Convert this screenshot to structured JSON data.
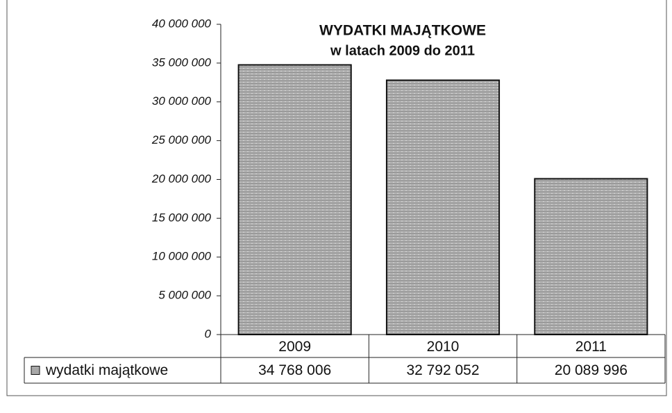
{
  "chart_data": {
    "type": "bar",
    "title": "WYDATKI MAJĄTKOWE",
    "subtitle": "w latach 2009 do 2011",
    "categories": [
      "2009",
      "2010",
      "2011"
    ],
    "series": [
      {
        "name": "wydatki majątkowe",
        "color": "#a8a8a8",
        "values": [
          34768006,
          32792052,
          20089996
        ],
        "value_labels": [
          "34 768 006",
          "32 792 052",
          "20 089 996"
        ]
      }
    ],
    "ylim": [
      0,
      40000000
    ],
    "yticks": [
      0,
      {
        "value": 5000000,
        "label": "5 000 000"
      },
      {
        "value": 10000000,
        "label": "10 000 000"
      },
      {
        "value": 15000000,
        "label": "15 000 000"
      },
      {
        "value": 20000000,
        "label": "20 000 000"
      },
      {
        "value": 25000000,
        "label": "25 000 000"
      },
      {
        "value": 30000000,
        "label": "30 000 000"
      },
      {
        "value": 35000000,
        "label": "35 000 000"
      },
      {
        "value": 40000000,
        "label": "40 000 000"
      }
    ],
    "grid": false,
    "legend": "left"
  }
}
